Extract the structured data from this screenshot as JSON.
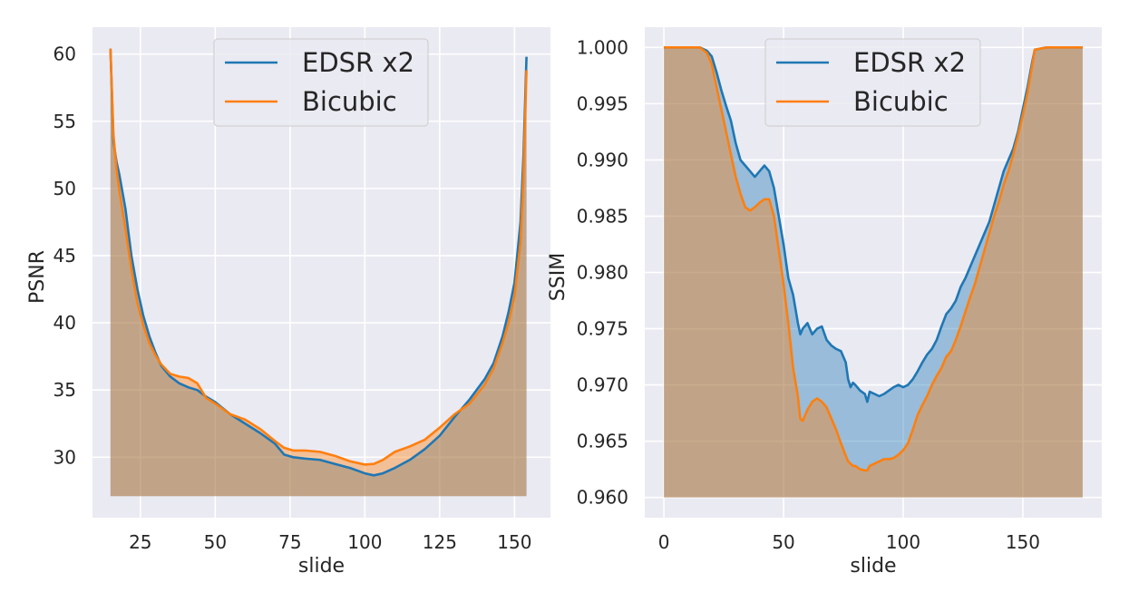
{
  "colors": {
    "axes_bg": "#EAEAF2",
    "grid": "#FFFFFF",
    "edsr": "#1F77B4",
    "bicubic": "#FF7F0E",
    "text": "#262626"
  },
  "chart_data": [
    {
      "type": "line",
      "fill_to_y": 27.1,
      "xlabel": "slide",
      "ylabel": "PSNR",
      "xlim": [
        9,
        162
      ],
      "ylim": [
        25.5,
        62
      ],
      "xticks": [
        25,
        50,
        75,
        100,
        125,
        150
      ],
      "yticks": [
        30,
        35,
        40,
        45,
        50,
        55,
        60
      ],
      "ytick_labels": [
        "30",
        "35",
        "40",
        "45",
        "50",
        "55",
        "60"
      ],
      "grid": true,
      "legend": "top-center",
      "series": [
        {
          "name": "EDSR x2",
          "color": "#1F77B4",
          "x": [
            15,
            16,
            17,
            18,
            20,
            22,
            24,
            26,
            28,
            30,
            32,
            35,
            38,
            41,
            44,
            47,
            50,
            55,
            60,
            65,
            70,
            73,
            76,
            80,
            85,
            90,
            95,
            100,
            103,
            106,
            110,
            115,
            120,
            125,
            130,
            135,
            140,
            143,
            146,
            148,
            150,
            152,
            153,
            154
          ],
          "y": [
            60.4,
            53.5,
            52.0,
            51.0,
            48.5,
            45.0,
            42.5,
            40.5,
            39.0,
            37.8,
            36.8,
            36.0,
            35.5,
            35.2,
            35.0,
            34.5,
            34.1,
            33.2,
            32.5,
            31.8,
            31.0,
            30.2,
            30.0,
            29.9,
            29.8,
            29.5,
            29.2,
            28.8,
            28.65,
            28.8,
            29.2,
            29.8,
            30.6,
            31.6,
            33.0,
            34.3,
            35.8,
            37.0,
            39.0,
            40.8,
            43.0,
            47.5,
            52.5,
            59.8
          ]
        },
        {
          "name": "Bicubic",
          "color": "#FF7F0E",
          "x": [
            15,
            16,
            17,
            18,
            20,
            22,
            24,
            26,
            28,
            30,
            32,
            35,
            38,
            41,
            44,
            47,
            50,
            55,
            60,
            65,
            70,
            73,
            76,
            80,
            85,
            90,
            95,
            100,
            103,
            106,
            110,
            115,
            120,
            125,
            130,
            135,
            140,
            143,
            146,
            148,
            150,
            152,
            153,
            154
          ],
          "y": [
            60.4,
            54.0,
            51.5,
            49.8,
            47.0,
            44.0,
            41.5,
            39.8,
            38.5,
            37.6,
            36.9,
            36.2,
            36.0,
            35.9,
            35.5,
            34.4,
            34.0,
            33.2,
            32.8,
            32.1,
            31.2,
            30.7,
            30.5,
            30.5,
            30.4,
            30.1,
            29.7,
            29.45,
            29.5,
            29.8,
            30.4,
            30.8,
            31.3,
            32.2,
            33.2,
            34.0,
            35.4,
            36.6,
            38.5,
            40.0,
            42.0,
            46.0,
            51.0,
            58.8
          ]
        }
      ]
    },
    {
      "type": "line",
      "fill_to_y": 0.96,
      "xlabel": "slide",
      "ylabel": "SSIM",
      "xlim": [
        -8,
        183
      ],
      "ylim": [
        0.9582,
        1.0018
      ],
      "xticks": [
        0,
        50,
        100,
        150
      ],
      "yticks": [
        0.96,
        0.965,
        0.97,
        0.975,
        0.98,
        0.985,
        0.99,
        0.995,
        1.0
      ],
      "ytick_labels": [
        "0.960",
        "0.965",
        "0.970",
        "0.975",
        "0.980",
        "0.985",
        "0.990",
        "0.995",
        "1.000"
      ],
      "grid": true,
      "legend": "top-center",
      "series": [
        {
          "name": "EDSR x2",
          "color": "#1F77B4",
          "x": [
            0,
            10,
            15,
            18,
            20,
            22,
            24,
            26,
            28,
            30,
            32,
            34,
            36,
            38,
            40,
            42,
            44,
            46,
            48,
            50,
            52,
            54,
            56,
            57,
            58,
            60,
            62,
            64,
            66,
            68,
            70,
            72,
            74,
            76,
            77,
            78,
            79,
            80,
            82,
            84,
            85,
            86,
            88,
            90,
            92,
            94,
            96,
            98,
            100,
            102,
            104,
            106,
            108,
            110,
            112,
            114,
            116,
            118,
            120,
            122,
            124,
            126,
            128,
            130,
            132,
            134,
            136,
            138,
            140,
            142,
            144,
            146,
            148,
            150,
            152,
            154,
            155,
            160,
            175
          ],
          "y": [
            1.0,
            1.0,
            1.0,
            0.9997,
            0.9992,
            0.9978,
            0.9962,
            0.9948,
            0.9935,
            0.9915,
            0.99,
            0.9895,
            0.989,
            0.9885,
            0.989,
            0.9895,
            0.989,
            0.9875,
            0.985,
            0.9825,
            0.9795,
            0.978,
            0.9755,
            0.9745,
            0.975,
            0.9755,
            0.9745,
            0.975,
            0.9752,
            0.974,
            0.9735,
            0.9732,
            0.973,
            0.972,
            0.9705,
            0.9698,
            0.9702,
            0.97,
            0.9695,
            0.9692,
            0.9685,
            0.9694,
            0.9692,
            0.969,
            0.9692,
            0.9695,
            0.9698,
            0.97,
            0.9698,
            0.97,
            0.9705,
            0.9712,
            0.972,
            0.9727,
            0.9732,
            0.974,
            0.9752,
            0.9763,
            0.9768,
            0.9775,
            0.9787,
            0.9795,
            0.9805,
            0.9815,
            0.9825,
            0.9835,
            0.9845,
            0.986,
            0.9875,
            0.989,
            0.99,
            0.991,
            0.9925,
            0.9945,
            0.9965,
            0.9988,
            0.9998,
            1.0,
            1.0
          ]
        },
        {
          "name": "Bicubic",
          "color": "#FF7F0E",
          "x": [
            0,
            10,
            15,
            18,
            20,
            22,
            24,
            26,
            28,
            30,
            32,
            34,
            36,
            38,
            40,
            42,
            44,
            46,
            48,
            50,
            52,
            54,
            56,
            57,
            58,
            60,
            62,
            64,
            66,
            68,
            70,
            72,
            74,
            76,
            77,
            78,
            79,
            80,
            82,
            84,
            85,
            86,
            88,
            90,
            92,
            94,
            96,
            98,
            100,
            102,
            104,
            106,
            108,
            110,
            112,
            114,
            116,
            118,
            120,
            122,
            124,
            126,
            128,
            130,
            132,
            134,
            136,
            138,
            140,
            142,
            144,
            146,
            148,
            150,
            152,
            154,
            155,
            160,
            175
          ],
          "y": [
            1.0,
            1.0,
            1.0,
            0.9995,
            0.9985,
            0.9965,
            0.9945,
            0.9925,
            0.9905,
            0.9885,
            0.987,
            0.9858,
            0.9855,
            0.9858,
            0.9862,
            0.9865,
            0.9865,
            0.985,
            0.982,
            0.979,
            0.9755,
            0.9715,
            0.969,
            0.967,
            0.9668,
            0.9678,
            0.9685,
            0.9688,
            0.9685,
            0.968,
            0.967,
            0.966,
            0.9648,
            0.9637,
            0.9632,
            0.963,
            0.9628,
            0.9628,
            0.9625,
            0.9624,
            0.9624,
            0.9628,
            0.963,
            0.9632,
            0.9634,
            0.9634,
            0.9635,
            0.9638,
            0.9642,
            0.9648,
            0.966,
            0.9673,
            0.9682,
            0.969,
            0.97,
            0.9708,
            0.9715,
            0.9725,
            0.973,
            0.974,
            0.9752,
            0.9765,
            0.9778,
            0.979,
            0.9805,
            0.982,
            0.9835,
            0.985,
            0.9863,
            0.9878,
            0.989,
            0.9905,
            0.9922,
            0.994,
            0.996,
            0.9985,
            0.9998,
            1.0,
            1.0
          ]
        }
      ]
    }
  ]
}
